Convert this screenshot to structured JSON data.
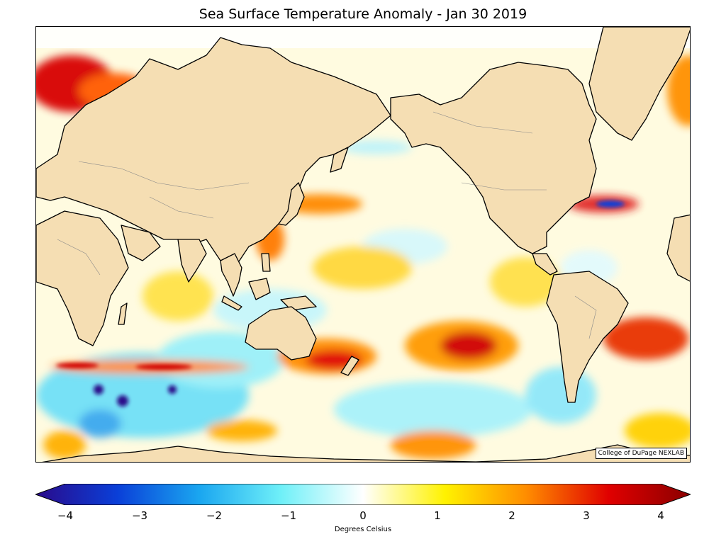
{
  "title": "Sea Surface Temperature Anomaly - Jan 30 2019",
  "credit": "College of DuPage NEXLAB",
  "colorbar": {
    "label": "Degrees Celsius",
    "min": -4,
    "max": 4,
    "ticks": [
      "−4",
      "−3",
      "−2",
      "−1",
      "0",
      "1",
      "2",
      "3",
      "4"
    ],
    "colors": {
      "-4": "#2a0a8a",
      "-3": "#0a3fd8",
      "-2": "#1aa6f0",
      "-1": "#6ff0f8",
      "0": "#ffffff",
      "1": "#fff200",
      "2": "#ff8c00",
      "3": "#e00000",
      "4": "#8a0000"
    }
  },
  "colors": {
    "land": "#f5deb3",
    "coastline": "#000000",
    "borders": "#888888",
    "warm_anomaly": "#e84a0a",
    "cool_anomaly": "#5fd0f5"
  }
}
